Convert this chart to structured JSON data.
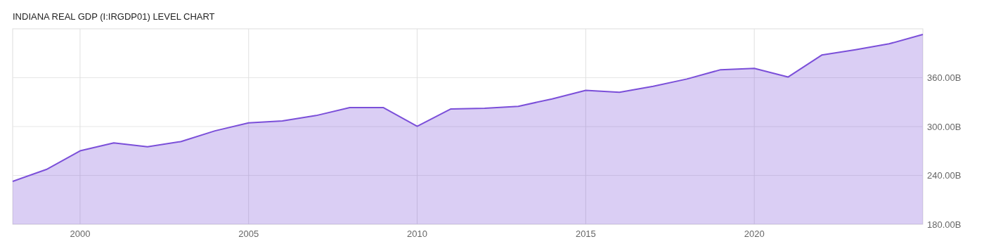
{
  "chart_data": {
    "type": "area",
    "title": "INDIANA REAL GDP (I:IRGDP01) LEVEL CHART",
    "x": [
      1998,
      1999,
      2000,
      2001,
      2002,
      2003,
      2004,
      2005,
      2006,
      2007,
      2008,
      2009,
      2010,
      2011,
      2012,
      2013,
      2014,
      2015,
      2016,
      2017,
      2018,
      2019,
      2020,
      2021,
      2022,
      2023,
      2024,
      2025
    ],
    "series": [
      {
        "color": "#7b4fd9",
        "values": [
          232.7,
          247.3,
          270.2,
          280,
          275.1,
          281.6,
          294.7,
          304.5,
          307,
          313.5,
          323.3,
          323.3,
          300.4,
          321.6,
          322.4,
          324.9,
          333.9,
          344.5,
          342,
          349.4,
          358.4,
          369.8,
          371.4,
          360.8,
          387.8,
          394.3,
          401.6,
          413.1
        ]
      }
    ],
    "xlim": [
      1998,
      2025
    ],
    "xticks": [
      2000,
      2005,
      2010,
      2015,
      2020
    ],
    "ylim": [
      180,
      420
    ],
    "yticks": [
      {
        "value": 180,
        "label": "180.00B"
      },
      {
        "value": 240,
        "label": "240.00B"
      },
      {
        "value": 300,
        "label": "300.00B"
      },
      {
        "value": 360,
        "label": "360.00B"
      }
    ],
    "grid": true
  }
}
